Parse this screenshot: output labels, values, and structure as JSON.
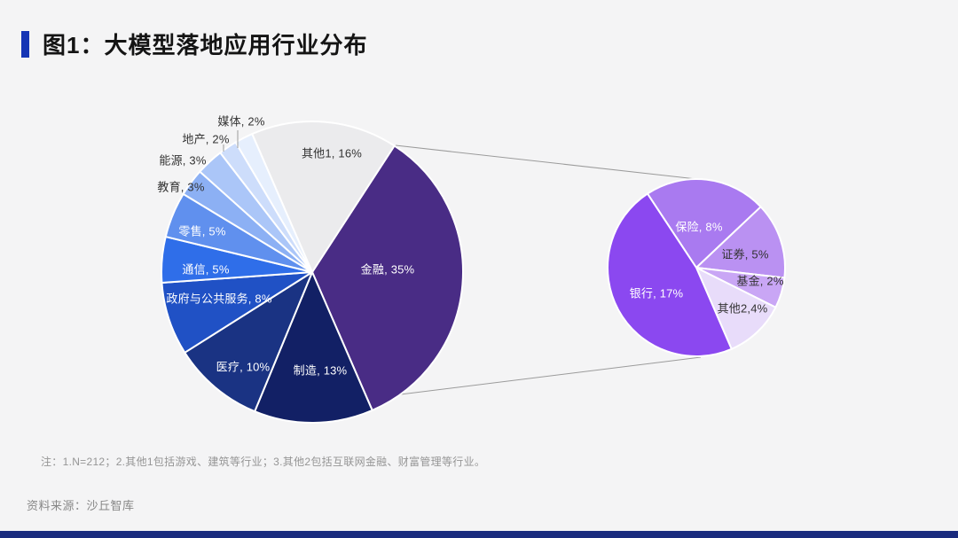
{
  "page": {
    "title": "图1：大模型落地应用行业分布",
    "note": "注：1.N=212；2.其他1包括游戏、建筑等行业；3.其他2包括互联网金融、财富管理等行业。",
    "source": "资料来源：沙丘智库",
    "accent_color": "#1535b5",
    "background_color": "#f4f4f5",
    "footer_bar_color": "#1a2b7e"
  },
  "chart_data": {
    "type": "pie",
    "title": "大模型落地应用行业分布",
    "unit": "%",
    "legend": "none",
    "main_pie": {
      "description": "行业分布主饼图",
      "start_angle_deg": 33,
      "slices": [
        {
          "label": "金融",
          "value": 35,
          "label_text": "金融, 35%",
          "color": "#492c85"
        },
        {
          "label": "制造",
          "value": 13,
          "label_text": "制造, 13%",
          "color": "#122065"
        },
        {
          "label": "医疗",
          "value": 10,
          "label_text": "医疗, 10%",
          "color": "#1a3383"
        },
        {
          "label": "政府与公共服务",
          "value": 8,
          "label_text": "政府与公共服务, 8%",
          "color": "#2051c5"
        },
        {
          "label": "通信",
          "value": 5,
          "label_text": "通信, 5%",
          "color": "#2f6ee9"
        },
        {
          "label": "零售",
          "value": 5,
          "label_text": "零售, 5%",
          "color": "#6090ee"
        },
        {
          "label": "教育",
          "value": 3,
          "label_text": "教育, 3%",
          "color": "#8cb0f4"
        },
        {
          "label": "能源",
          "value": 3,
          "label_text": "能源, 3%",
          "color": "#abc6f8"
        },
        {
          "label": "地产",
          "value": 2,
          "label_text": "地产, 2%",
          "color": "#cdddfb"
        },
        {
          "label": "媒体",
          "value": 2,
          "label_text": "媒体, 2%",
          "color": "#e6effd"
        },
        {
          "label": "其他1",
          "value": 16,
          "label_text": "其他1, 16%",
          "color": "#ebebed"
        }
      ]
    },
    "sub_pie": {
      "description": "金融细分饼图",
      "start_angle_deg": -33.4,
      "slices": [
        {
          "label": "保险",
          "value": 8,
          "label_text": "保险, 8%",
          "color": "#a97af0"
        },
        {
          "label": "证券",
          "value": 5,
          "label_text": "证券, 5%",
          "color": "#ba91f2"
        },
        {
          "label": "基金",
          "value": 2,
          "label_text": "基金, 2%",
          "color": "#c9a6f5"
        },
        {
          "label": "其他2",
          "value": 4,
          "label_text": "其他2,4%",
          "color": "#e8dcfa"
        },
        {
          "label": "银行",
          "value": 17,
          "label_text": "银行, 17%",
          "color": "#8b48f0"
        }
      ]
    }
  }
}
